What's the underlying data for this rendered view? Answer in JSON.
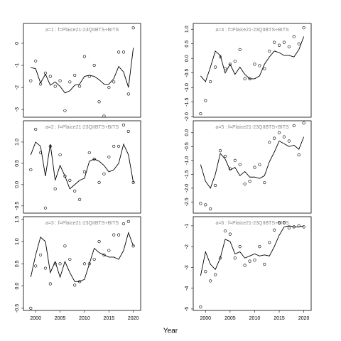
{
  "x_axis_label": "Year",
  "chart_data": [
    {
      "type": "line",
      "title": "a=1 : f=Plaice21-23QIIBTS+BITS",
      "x": [
        1999,
        2000,
        2001,
        2002,
        2003,
        2004,
        2005,
        2006,
        2007,
        2008,
        2009,
        2010,
        2011,
        2012,
        2013,
        2014,
        2015,
        2016,
        2017,
        2018,
        2019,
        2020
      ],
      "xlim": [
        1997.5,
        2021.5
      ],
      "ylim": [
        -3.35,
        0.9
      ],
      "yticks": [
        0,
        -1,
        -2,
        -3
      ],
      "series": [
        {
          "style": "line",
          "color": "#000000",
          "values": [
            -1.1,
            -1.15,
            -1.8,
            -1.4,
            -1.9,
            -1.75,
            -1.95,
            -2.25,
            -2.15,
            -1.9,
            -1.85,
            -1.5,
            -1.45,
            -1.5,
            -1.65,
            -1.85,
            -1.85,
            -1.6,
            -1.05,
            -1.3,
            -2.0,
            -0.2
          ]
        },
        {
          "style": "points",
          "color": "#000000",
          "values": [
            -1.7,
            -0.8,
            -1.85,
            -1.35,
            -1.5,
            -1.95,
            -1.7,
            -3.05,
            -1.75,
            -1.45,
            -1.95,
            -0.6,
            -1.5,
            -1.0,
            -2.65,
            -3.3,
            -2.0,
            -1.75,
            -0.4,
            -0.4,
            -2.3,
            0.7
          ]
        }
      ]
    },
    {
      "type": "line",
      "title": "a=2 : f=Plaice21-23QIIBTS+BITS",
      "x": [
        1999,
        2000,
        2001,
        2002,
        2003,
        2004,
        2005,
        2006,
        2007,
        2008,
        2009,
        2010,
        2011,
        2012,
        2013,
        2014,
        2015,
        2016,
        2017,
        2018,
        2019,
        2020
      ],
      "xlim": [
        1997.5,
        2021.5
      ],
      "ylim": [
        -0.67,
        1.5
      ],
      "yticks": [
        {
          "value": 1,
          "label": "1.0"
        },
        0.5,
        {
          "value": 0,
          "label": "0.0"
        },
        -0.5
      ],
      "series": [
        {
          "style": "line",
          "color": "#000000",
          "values": [
            0.7,
            1.0,
            0.9,
            0.2,
            0.95,
            0.1,
            0.45,
            0.2,
            -0.1,
            0.0,
            0.1,
            0.15,
            0.55,
            0.6,
            0.55,
            0.45,
            0.3,
            0.35,
            0.5,
            0.95,
            0.7,
            0.05
          ]
        },
        {
          "style": "points",
          "color": "#000000",
          "values": [
            0.35,
            1.3,
            0.75,
            -0.55,
            0.9,
            -0.1,
            0.7,
            0.2,
            0.1,
            -0.15,
            -0.35,
            0.3,
            0.75,
            0.6,
            0.05,
            0.25,
            0.65,
            0.9,
            0.9,
            1.4,
            1.25,
            0.05
          ]
        }
      ]
    },
    {
      "type": "line",
      "title": "a=3 : f=Plaice21-23QIIBTS+BITS",
      "x": [
        1999,
        2000,
        2001,
        2002,
        2003,
        2004,
        2005,
        2006,
        2007,
        2008,
        2009,
        2010,
        2011,
        2012,
        2013,
        2014,
        2015,
        2016,
        2017,
        2018,
        2019,
        2020
      ],
      "xlim": [
        1997.5,
        2021.5
      ],
      "xticks": [
        2000,
        2005,
        2010,
        2015,
        2020
      ],
      "ylim": [
        -0.55,
        1.56
      ],
      "yticks": [
        1.5,
        {
          "value": 1,
          "label": "1.0"
        },
        0.5,
        {
          "value": 0,
          "label": "0.0"
        },
        -0.5
      ],
      "series": [
        {
          "style": "line",
          "color": "#000000",
          "values": [
            0.2,
            0.7,
            1.1,
            1.0,
            0.3,
            0.55,
            0.2,
            0.55,
            0.3,
            0.1,
            0.1,
            0.15,
            0.5,
            0.85,
            0.75,
            0.7,
            0.65,
            0.65,
            0.6,
            0.8,
            1.2,
            0.9
          ]
        },
        {
          "style": "points",
          "color": "#000000",
          "values": [
            -0.5,
            0.45,
            0.7,
            0.4,
            0.05,
            0.5,
            0.5,
            0.9,
            0.6,
            0.02,
            0.1,
            0.5,
            0.5,
            0.6,
            1.0,
            0.7,
            0.8,
            1.15,
            1.15,
            1.4,
            1.45,
            0.9
          ]
        }
      ]
    },
    {
      "type": "line",
      "title": "a=4 : f=Plaice21-23QIIBTS+BITS",
      "x": [
        1999,
        2000,
        2001,
        2002,
        2003,
        2004,
        2005,
        2006,
        2007,
        2008,
        2009,
        2010,
        2011,
        2012,
        2013,
        2014,
        2015,
        2016,
        2017,
        2018,
        2019,
        2020
      ],
      "xlim": [
        1997.5,
        2021.5
      ],
      "ylim": [
        -2.02,
        1.2
      ],
      "yticks": [
        {
          "value": 1,
          "label": "1.0"
        },
        0.5,
        {
          "value": 0,
          "label": "0.0"
        },
        -0.5,
        {
          "value": -1,
          "label": "-1.0"
        },
        -1.5,
        {
          "value": -2,
          "label": "-2.0"
        }
      ],
      "series": [
        {
          "style": "line",
          "color": "#000000",
          "values": [
            -0.6,
            -0.8,
            -0.3,
            0.25,
            0.1,
            -0.5,
            -0.2,
            -0.55,
            -0.3,
            -0.55,
            -0.7,
            -0.7,
            -0.6,
            -0.2,
            0.05,
            0.25,
            0.2,
            0.1,
            0.1,
            0.05,
            0.3,
            0.75
          ]
        },
        {
          "style": "points",
          "color": "#000000",
          "values": [
            -1.9,
            -1.45,
            -0.8,
            -0.3,
            0.05,
            -0.35,
            -0.2,
            -0.1,
            0.3,
            -0.7,
            -0.7,
            -0.2,
            -0.25,
            -0.35,
            0.25,
            0.55,
            0.45,
            0.55,
            0.4,
            0.75,
            0.5,
            1.05
          ]
        }
      ]
    },
    {
      "type": "line",
      "title": "a=5 : f=Plaice21-23QIIBTS+BITS",
      "x": [
        1999,
        2000,
        2001,
        2002,
        2003,
        2004,
        2005,
        2006,
        2007,
        2008,
        2009,
        2010,
        2011,
        2012,
        2013,
        2014,
        2015,
        2016,
        2017,
        2018,
        2019,
        2020
      ],
      "xlim": [
        1997.5,
        2021.5
      ],
      "ylim": [
        -2.9,
        0.43
      ],
      "yticks": [
        {
          "value": 0,
          "label": "0.0"
        },
        -0.5,
        {
          "value": -1,
          "label": "-1.0"
        },
        -1.5,
        {
          "value": -2,
          "label": "-2.0"
        },
        -2.5
      ],
      "series": [
        {
          "style": "line",
          "color": "#000000",
          "values": [
            -1.15,
            -1.75,
            -2.0,
            -1.5,
            -0.75,
            -0.95,
            -1.35,
            -1.25,
            -1.55,
            -1.4,
            -1.6,
            -1.6,
            -1.65,
            -1.55,
            -1.05,
            -0.7,
            -0.3,
            -0.4,
            -0.5,
            -0.45,
            -0.6,
            -0.15
          ]
        },
        {
          "style": "points",
          "color": "#000000",
          "values": [
            -2.55,
            -2.6,
            -2.75,
            -1.9,
            -0.65,
            -0.85,
            -1.3,
            -1.0,
            -1.15,
            -1.85,
            -1.75,
            -1.25,
            -1.15,
            -1.8,
            -0.35,
            -0.2,
            0.0,
            -0.15,
            -0.3,
            0.25,
            -0.8,
            0.35
          ]
        }
      ]
    },
    {
      "type": "line",
      "title": "a=6 : f=Plaice21-23QIIBTS+BITS",
      "x": [
        1999,
        2000,
        2001,
        2002,
        2003,
        2004,
        2005,
        2006,
        2007,
        2008,
        2009,
        2010,
        2011,
        2012,
        2013,
        2014,
        2015,
        2016,
        2017,
        2018,
        2019,
        2020
      ],
      "xlim": [
        1997.5,
        2021.5
      ],
      "xticks": [
        2000,
        2005,
        2010,
        2015,
        2020
      ],
      "ylim": [
        -5.07,
        -0.56
      ],
      "yticks": [
        -1,
        -2,
        -3,
        -4,
        -5
      ],
      "series": [
        {
          "style": "line",
          "color": "#000000",
          "values": [
            -3.4,
            -2.25,
            -2.85,
            -3.1,
            -2.55,
            -1.65,
            -1.75,
            -2.35,
            -2.25,
            -2.55,
            -2.45,
            -2.35,
            -2.45,
            -2.4,
            -2.45,
            -2.0,
            -1.45,
            -1.05,
            -1.0,
            -1.05,
            -1.05,
            -1.0
          ]
        },
        {
          "style": "points",
          "color": "#000000",
          "values": [
            -4.9,
            -3.2,
            -3.65,
            -3.35,
            -2.55,
            -1.25,
            -1.4,
            -2.55,
            -2.0,
            -2.9,
            -2.7,
            -2.65,
            -2.0,
            -2.85,
            -1.8,
            -1.2,
            -0.85,
            -0.85,
            -1.1,
            -1.05,
            -1.0,
            -1.05
          ]
        }
      ]
    }
  ]
}
